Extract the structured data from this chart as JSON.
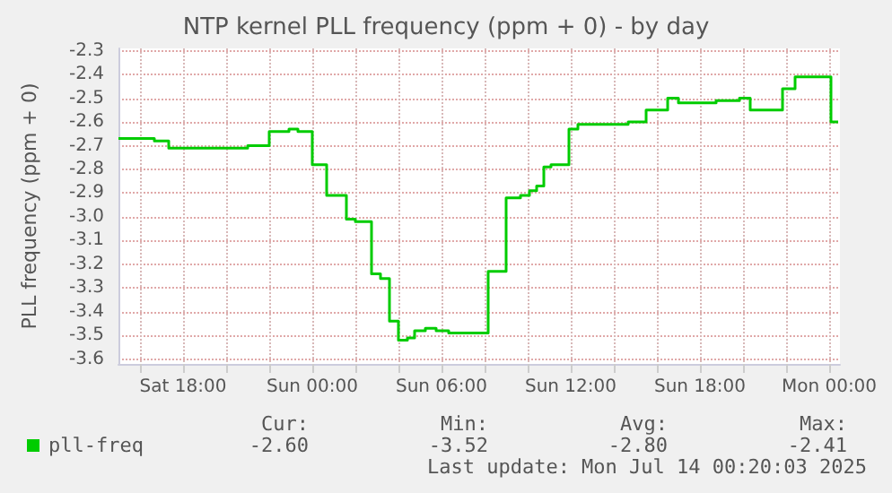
{
  "chart_data": {
    "type": "step",
    "title": "NTP kernel PLL frequency (ppm + 0) - by day",
    "ylabel": "PLL frequency (ppm + 0)",
    "xlim": [
      "2025-07-12T15:00",
      "2025-07-14T00:30"
    ],
    "xticks": [
      {
        "value": "2025-07-12T16:00",
        "label": null
      },
      {
        "value": "2025-07-12T18:00",
        "label": "Sat 18:00"
      },
      {
        "value": "2025-07-12T20:00",
        "label": null
      },
      {
        "value": "2025-07-12T22:00",
        "label": null
      },
      {
        "value": "2025-07-13T00:00",
        "label": "Sun 00:00"
      },
      {
        "value": "2025-07-13T02:00",
        "label": null
      },
      {
        "value": "2025-07-13T04:00",
        "label": null
      },
      {
        "value": "2025-07-13T06:00",
        "label": "Sun 06:00"
      },
      {
        "value": "2025-07-13T08:00",
        "label": null
      },
      {
        "value": "2025-07-13T10:00",
        "label": null
      },
      {
        "value": "2025-07-13T12:00",
        "label": "Sun 12:00"
      },
      {
        "value": "2025-07-13T14:00",
        "label": null
      },
      {
        "value": "2025-07-13T16:00",
        "label": null
      },
      {
        "value": "2025-07-13T18:00",
        "label": "Sun 18:00"
      },
      {
        "value": "2025-07-13T20:00",
        "label": null
      },
      {
        "value": "2025-07-13T22:00",
        "label": null
      },
      {
        "value": "2025-07-14T00:00",
        "label": "Mon 00:00"
      }
    ],
    "ylim": [
      -3.62,
      -2.29
    ],
    "yticks": [
      -3.6,
      -3.5,
      -3.4,
      -3.3,
      -3.2,
      -3.1,
      {
        "value": -3,
        "label": "-3.0"
      },
      -2.9,
      -2.8,
      -2.7,
      -2.6,
      -2.5,
      -2.4,
      -2.3
    ],
    "grid": true,
    "legend": "bottom left",
    "line_style": "solid",
    "marker": "none",
    "series": [
      {
        "name": "pll-freq",
        "color": "#00cc00",
        "x": [
          "2025-07-12T15:00",
          "2025-07-12T16:40",
          "2025-07-12T17:20",
          "2025-07-12T21:00",
          "2025-07-12T22:00",
          "2025-07-12T22:55",
          "2025-07-12T23:20",
          "2025-07-13T00:00",
          "2025-07-13T00:40",
          "2025-07-13T01:35",
          "2025-07-13T02:00",
          "2025-07-13T02:45",
          "2025-07-13T03:10",
          "2025-07-13T03:35",
          "2025-07-13T04:00",
          "2025-07-13T04:25",
          "2025-07-13T04:45",
          "2025-07-13T05:15",
          "2025-07-13T05:45",
          "2025-07-13T06:20",
          "2025-07-13T08:10",
          "2025-07-13T09:00",
          "2025-07-13T09:40",
          "2025-07-13T10:05",
          "2025-07-13T10:25",
          "2025-07-13T10:45",
          "2025-07-13T11:05",
          "2025-07-13T11:55",
          "2025-07-13T12:20",
          "2025-07-13T13:35",
          "2025-07-13T14:40",
          "2025-07-13T15:30",
          "2025-07-13T16:30",
          "2025-07-13T17:00",
          "2025-07-13T18:45",
          "2025-07-13T19:50",
          "2025-07-13T20:20",
          "2025-07-13T21:50",
          "2025-07-13T22:25",
          "2025-07-14T00:05",
          "2025-07-14T00:25"
        ],
        "values": [
          -2.67,
          -2.68,
          -2.71,
          -2.7,
          -2.64,
          -2.63,
          -2.64,
          -2.78,
          -2.91,
          -3.01,
          -3.02,
          -3.24,
          -3.26,
          -3.44,
          -3.52,
          -3.51,
          -3.48,
          -3.47,
          -3.48,
          -3.49,
          -3.23,
          -2.92,
          -2.91,
          -2.89,
          -2.87,
          -2.79,
          -2.78,
          -2.63,
          -2.61,
          -2.61,
          -2.6,
          -2.55,
          -2.5,
          -2.52,
          -2.51,
          -2.5,
          -2.55,
          -2.46,
          -2.41,
          -2.6,
          -2.6
        ]
      }
    ],
    "annotations": [
      "Cur:",
      "-2.60",
      "Min:",
      "-3.52",
      "Avg:",
      "-2.80",
      "Max:",
      "-2.41",
      "Last update: Mon Jul 14 00:20:03 2025"
    ]
  }
}
